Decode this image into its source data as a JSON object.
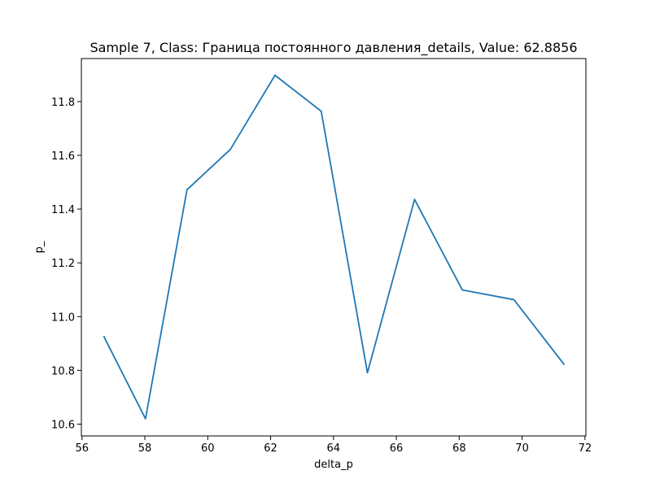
{
  "chart_data": {
    "type": "line",
    "title": "Sample 7, Class: Граница постоянного давления_details, Value: 62.8856",
    "xlabel": "delta_p",
    "ylabel": "p_",
    "xlim": [
      55.98,
      72.03
    ],
    "ylim": [
      10.556,
      11.96
    ],
    "xticks": [
      56,
      58,
      60,
      62,
      64,
      66,
      68,
      70,
      72
    ],
    "yticks": [
      10.6,
      10.8,
      11.0,
      11.2,
      11.4,
      11.6,
      11.8
    ],
    "grid": false,
    "line_color": "#1f77b4",
    "series": [
      {
        "x": [
          56.7,
          58.02,
          59.34,
          60.72,
          62.14,
          63.61,
          65.08,
          66.58,
          68.1,
          69.74,
          71.33
        ],
        "y": [
          10.925,
          10.62,
          11.472,
          11.622,
          11.898,
          11.764,
          10.791,
          11.436,
          11.099,
          11.063,
          10.823
        ]
      }
    ]
  }
}
